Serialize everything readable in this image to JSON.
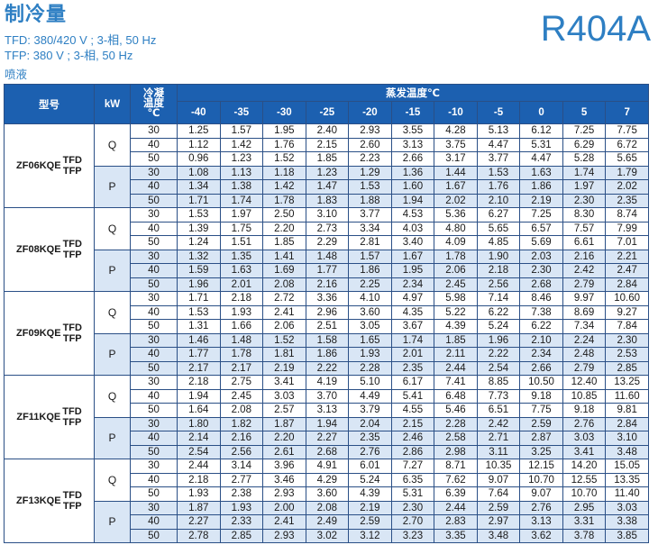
{
  "header": {
    "title": "制冷量",
    "line1": "TFD: 380/420 V ; 3-相, 50 Hz",
    "line2": "TFP: 380 V ; 3-相, 50 Hz",
    "note": "喷液",
    "refrigerant": "R404A"
  },
  "table": {
    "col_model": "型号",
    "col_kw": "kW",
    "col_cond": [
      "冷凝",
      "温度",
      "℃"
    ],
    "col_evap": "蒸发温度℃",
    "evap_temps": [
      "-40",
      "-35",
      "-30",
      "-25",
      "-20",
      "-15",
      "-10",
      "-5",
      "0",
      "5",
      "7"
    ],
    "models": [
      {
        "name": "ZF06KQE",
        "variants": [
          "TFD",
          "TFP"
        ],
        "groups": [
          {
            "kw": "Q",
            "rows": [
              {
                "t": "30",
                "v": [
                  "1.25",
                  "1.57",
                  "1.95",
                  "2.40",
                  "2.93",
                  "3.55",
                  "4.28",
                  "5.13",
                  "6.12",
                  "7.25",
                  "7.75"
                ]
              },
              {
                "t": "40",
                "v": [
                  "1.12",
                  "1.42",
                  "1.76",
                  "2.15",
                  "2.60",
                  "3.13",
                  "3.75",
                  "4.47",
                  "5.31",
                  "6.29",
                  "6.72"
                ]
              },
              {
                "t": "50",
                "v": [
                  "0.96",
                  "1.23",
                  "1.52",
                  "1.85",
                  "2.23",
                  "2.66",
                  "3.17",
                  "3.77",
                  "4.47",
                  "5.28",
                  "5.65"
                ]
              }
            ]
          },
          {
            "kw": "P",
            "rows": [
              {
                "t": "30",
                "v": [
                  "1.08",
                  "1.13",
                  "1.18",
                  "1.23",
                  "1.29",
                  "1.36",
                  "1.44",
                  "1.53",
                  "1.63",
                  "1.74",
                  "1.79"
                ]
              },
              {
                "t": "40",
                "v": [
                  "1.34",
                  "1.38",
                  "1.42",
                  "1.47",
                  "1.53",
                  "1.60",
                  "1.67",
                  "1.76",
                  "1.86",
                  "1.97",
                  "2.02"
                ]
              },
              {
                "t": "50",
                "v": [
                  "1.71",
                  "1.74",
                  "1.78",
                  "1.83",
                  "1.88",
                  "1.94",
                  "2.02",
                  "2.10",
                  "2.19",
                  "2.30",
                  "2.35"
                ]
              }
            ]
          }
        ]
      },
      {
        "name": "ZF08KQE",
        "variants": [
          "TFD",
          "TFP"
        ],
        "groups": [
          {
            "kw": "Q",
            "rows": [
              {
                "t": "30",
                "v": [
                  "1.53",
                  "1.97",
                  "2.50",
                  "3.10",
                  "3.77",
                  "4.53",
                  "5.36",
                  "6.27",
                  "7.25",
                  "8.30",
                  "8.74"
                ]
              },
              {
                "t": "40",
                "v": [
                  "1.39",
                  "1.75",
                  "2.20",
                  "2.73",
                  "3.34",
                  "4.03",
                  "4.80",
                  "5.65",
                  "6.57",
                  "7.57",
                  "7.99"
                ]
              },
              {
                "t": "50",
                "v": [
                  "1.24",
                  "1.51",
                  "1.85",
                  "2.29",
                  "2.81",
                  "3.40",
                  "4.09",
                  "4.85",
                  "5.69",
                  "6.61",
                  "7.01"
                ]
              }
            ]
          },
          {
            "kw": "P",
            "rows": [
              {
                "t": "30",
                "v": [
                  "1.32",
                  "1.35",
                  "1.41",
                  "1.48",
                  "1.57",
                  "1.67",
                  "1.78",
                  "1.90",
                  "2.03",
                  "2.16",
                  "2.21"
                ]
              },
              {
                "t": "40",
                "v": [
                  "1.59",
                  "1.63",
                  "1.69",
                  "1.77",
                  "1.86",
                  "1.95",
                  "2.06",
                  "2.18",
                  "2.30",
                  "2.42",
                  "2.47"
                ]
              },
              {
                "t": "50",
                "v": [
                  "1.96",
                  "2.01",
                  "2.08",
                  "2.16",
                  "2.25",
                  "2.34",
                  "2.45",
                  "2.56",
                  "2.68",
                  "2.79",
                  "2.84"
                ]
              }
            ]
          }
        ]
      },
      {
        "name": "ZF09KQE",
        "variants": [
          "TFD",
          "TFP"
        ],
        "groups": [
          {
            "kw": "Q",
            "rows": [
              {
                "t": "30",
                "v": [
                  "1.71",
                  "2.18",
                  "2.72",
                  "3.36",
                  "4.10",
                  "4.97",
                  "5.98",
                  "7.14",
                  "8.46",
                  "9.97",
                  "10.60"
                ]
              },
              {
                "t": "40",
                "v": [
                  "1.53",
                  "1.93",
                  "2.41",
                  "2.96",
                  "3.60",
                  "4.35",
                  "5.22",
                  "6.22",
                  "7.38",
                  "8.69",
                  "9.27"
                ]
              },
              {
                "t": "50",
                "v": [
                  "1.31",
                  "1.66",
                  "2.06",
                  "2.51",
                  "3.05",
                  "3.67",
                  "4.39",
                  "5.24",
                  "6.22",
                  "7.34",
                  "7.84"
                ]
              }
            ]
          },
          {
            "kw": "P",
            "rows": [
              {
                "t": "30",
                "v": [
                  "1.46",
                  "1.48",
                  "1.52",
                  "1.58",
                  "1.65",
                  "1.74",
                  "1.85",
                  "1.96",
                  "2.10",
                  "2.24",
                  "2.30"
                ]
              },
              {
                "t": "40",
                "v": [
                  "1.77",
                  "1.78",
                  "1.81",
                  "1.86",
                  "1.93",
                  "2.01",
                  "2.11",
                  "2.22",
                  "2.34",
                  "2.48",
                  "2.53"
                ]
              },
              {
                "t": "50",
                "v": [
                  "2.17",
                  "2.17",
                  "2.19",
                  "2.22",
                  "2.28",
                  "2.35",
                  "2.44",
                  "2.54",
                  "2.66",
                  "2.79",
                  "2.85"
                ]
              }
            ]
          }
        ]
      },
      {
        "name": "ZF11KQE",
        "variants": [
          "TFD",
          "TFP"
        ],
        "groups": [
          {
            "kw": "Q",
            "rows": [
              {
                "t": "30",
                "v": [
                  "2.18",
                  "2.75",
                  "3.41",
                  "4.19",
                  "5.10",
                  "6.17",
                  "7.41",
                  "8.85",
                  "10.50",
                  "12.40",
                  "13.25"
                ]
              },
              {
                "t": "40",
                "v": [
                  "1.94",
                  "2.45",
                  "3.03",
                  "3.70",
                  "4.49",
                  "5.41",
                  "6.48",
                  "7.73",
                  "9.18",
                  "10.85",
                  "11.60"
                ]
              },
              {
                "t": "50",
                "v": [
                  "1.64",
                  "2.08",
                  "2.57",
                  "3.13",
                  "3.79",
                  "4.55",
                  "5.46",
                  "6.51",
                  "7.75",
                  "9.18",
                  "9.81"
                ]
              }
            ]
          },
          {
            "kw": "P",
            "rows": [
              {
                "t": "30",
                "v": [
                  "1.80",
                  "1.82",
                  "1.87",
                  "1.94",
                  "2.04",
                  "2.15",
                  "2.28",
                  "2.42",
                  "2.59",
                  "2.76",
                  "2.84"
                ]
              },
              {
                "t": "40",
                "v": [
                  "2.14",
                  "2.16",
                  "2.20",
                  "2.27",
                  "2.35",
                  "2.46",
                  "2.58",
                  "2.71",
                  "2.87",
                  "3.03",
                  "3.10"
                ]
              },
              {
                "t": "50",
                "v": [
                  "2.54",
                  "2.56",
                  "2.61",
                  "2.68",
                  "2.76",
                  "2.86",
                  "2.98",
                  "3.11",
                  "3.25",
                  "3.41",
                  "3.48"
                ]
              }
            ]
          }
        ]
      },
      {
        "name": "ZF13KQE",
        "variants": [
          "TFD",
          "TFP"
        ],
        "groups": [
          {
            "kw": "Q",
            "rows": [
              {
                "t": "30",
                "v": [
                  "2.44",
                  "3.14",
                  "3.96",
                  "4.91",
                  "6.01",
                  "7.27",
                  "8.71",
                  "10.35",
                  "12.15",
                  "14.20",
                  "15.05"
                ]
              },
              {
                "t": "40",
                "v": [
                  "2.18",
                  "2.77",
                  "3.46",
                  "4.29",
                  "5.24",
                  "6.35",
                  "7.62",
                  "9.07",
                  "10.70",
                  "12.55",
                  "13.35"
                ]
              },
              {
                "t": "50",
                "v": [
                  "1.93",
                  "2.38",
                  "2.93",
                  "3.60",
                  "4.39",
                  "5.31",
                  "6.39",
                  "7.64",
                  "9.07",
                  "10.70",
                  "11.40"
                ]
              }
            ]
          },
          {
            "kw": "P",
            "rows": [
              {
                "t": "30",
                "v": [
                  "1.87",
                  "1.93",
                  "2.00",
                  "2.08",
                  "2.19",
                  "2.30",
                  "2.44",
                  "2.59",
                  "2.76",
                  "2.95",
                  "3.03"
                ]
              },
              {
                "t": "40",
                "v": [
                  "2.27",
                  "2.33",
                  "2.41",
                  "2.49",
                  "2.59",
                  "2.70",
                  "2.83",
                  "2.97",
                  "3.13",
                  "3.31",
                  "3.38"
                ]
              },
              {
                "t": "50",
                "v": [
                  "2.78",
                  "2.85",
                  "2.93",
                  "3.02",
                  "3.12",
                  "3.23",
                  "3.35",
                  "3.48",
                  "3.62",
                  "3.78",
                  "3.85"
                ]
              }
            ]
          }
        ]
      }
    ]
  }
}
